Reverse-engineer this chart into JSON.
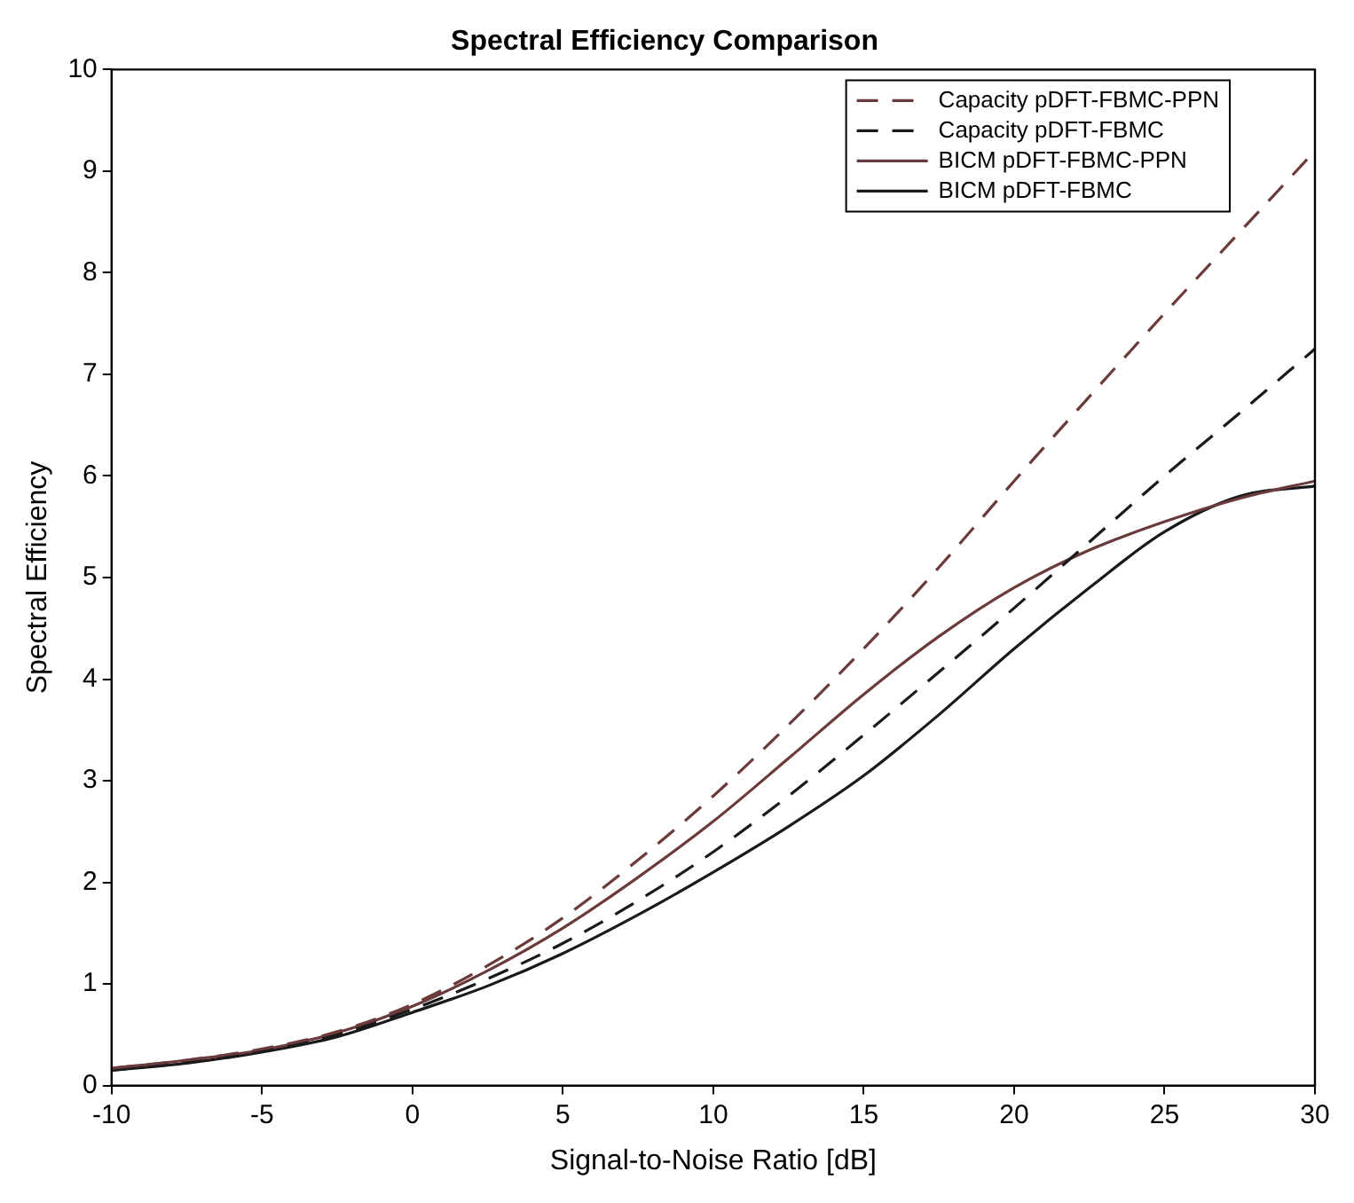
{
  "chart_data": {
    "type": "line",
    "title": "Spectral Efficiency Comparison",
    "xlabel": "Signal-to-Noise Ratio [dB]",
    "ylabel": "Spectral Efficiency",
    "x": [
      -10,
      -7.5,
      -5,
      -2.5,
      0,
      2.5,
      5,
      7.5,
      10,
      12.5,
      15,
      17.5,
      20,
      22.5,
      25,
      27.5,
      30
    ],
    "xlim": [
      -10,
      30
    ],
    "xticks": [
      -10,
      -5,
      0,
      5,
      10,
      15,
      20,
      25,
      30
    ],
    "ylim": [
      0,
      10
    ],
    "yticks": [
      0,
      1,
      2,
      3,
      4,
      5,
      6,
      7,
      8,
      9,
      10
    ],
    "grid": false,
    "legend": "top right",
    "marker": "none",
    "series": [
      {
        "name": "Capacity pDFT-FBMC-PPN",
        "color": "#6b3a3a",
        "line_style": "dashed",
        "values": [
          0.17,
          0.25,
          0.36,
          0.53,
          0.8,
          1.18,
          1.65,
          2.22,
          2.85,
          3.55,
          4.3,
          5.1,
          5.95,
          6.78,
          7.6,
          8.4,
          9.2
        ]
      },
      {
        "name": "Capacity pDFT-FBMC",
        "color": "#1a1a1a",
        "line_style": "dashed",
        "values": [
          0.15,
          0.23,
          0.34,
          0.5,
          0.75,
          1.05,
          1.4,
          1.82,
          2.3,
          2.85,
          3.45,
          4.07,
          4.7,
          5.35,
          6.0,
          6.62,
          7.25
        ]
      },
      {
        "name": "BICM pDFT-FBMC-PPN",
        "color": "#6b3a3a",
        "line_style": "solid",
        "values": [
          0.17,
          0.25,
          0.35,
          0.52,
          0.78,
          1.13,
          1.55,
          2.05,
          2.6,
          3.22,
          3.85,
          4.42,
          4.9,
          5.27,
          5.55,
          5.78,
          5.95
        ]
      },
      {
        "name": "BICM pDFT-FBMC",
        "color": "#1a1a1a",
        "line_style": "solid",
        "values": [
          0.15,
          0.22,
          0.33,
          0.48,
          0.72,
          0.98,
          1.3,
          1.68,
          2.1,
          2.55,
          3.05,
          3.65,
          4.3,
          4.9,
          5.45,
          5.8,
          5.9
        ]
      }
    ]
  }
}
